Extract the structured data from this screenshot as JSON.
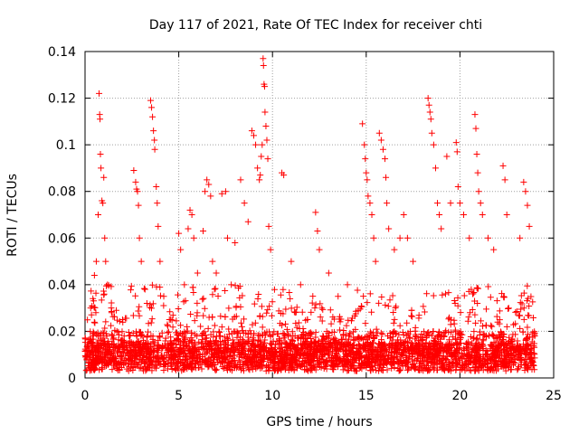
{
  "chart_data": {
    "type": "scatter",
    "title": "Day 117 of 2021, Rate Of TEC Index for receiver chti",
    "xlabel": "GPS time / hours",
    "ylabel": "ROTI / TECUs",
    "xlim": [
      0,
      25
    ],
    "ylim": [
      0,
      0.14
    ],
    "xticks": [
      0,
      5,
      10,
      15,
      20,
      25
    ],
    "yticks": [
      0,
      0.02,
      0.04,
      0.06,
      0.08,
      0.1,
      0.12,
      0.14
    ],
    "xtick_labels": [
      "0",
      "5",
      "10",
      "15",
      "20",
      "25"
    ],
    "ytick_labels": [
      "0",
      "0.02",
      "0.04",
      "0.06",
      "0.08",
      "0.1",
      "0.12",
      "0.14"
    ],
    "grid": true,
    "marker": "+",
    "marker_color": "#ff0000",
    "series": [
      {
        "name": "ROTI",
        "points": [
          [
            0.3,
            0.03
          ],
          [
            0.5,
            0.044
          ],
          [
            0.6,
            0.05
          ],
          [
            0.7,
            0.07
          ],
          [
            0.75,
            0.122
          ],
          [
            0.78,
            0.113
          ],
          [
            0.8,
            0.111
          ],
          [
            0.82,
            0.096
          ],
          [
            0.85,
            0.09
          ],
          [
            0.9,
            0.076
          ],
          [
            0.95,
            0.075
          ],
          [
            1.0,
            0.086
          ],
          [
            1.05,
            0.06
          ],
          [
            1.1,
            0.05
          ],
          [
            1.2,
            0.04
          ],
          [
            1.4,
            0.03
          ],
          [
            1.7,
            0.02
          ],
          [
            2.0,
            0.025
          ],
          [
            2.6,
            0.089
          ],
          [
            2.7,
            0.084
          ],
          [
            2.75,
            0.081
          ],
          [
            2.8,
            0.08
          ],
          [
            2.85,
            0.074
          ],
          [
            2.9,
            0.06
          ],
          [
            3.0,
            0.05
          ],
          [
            3.2,
            0.038
          ],
          [
            3.3,
            0.032
          ],
          [
            3.5,
            0.119
          ],
          [
            3.55,
            0.116
          ],
          [
            3.6,
            0.112
          ],
          [
            3.65,
            0.106
          ],
          [
            3.7,
            0.102
          ],
          [
            3.72,
            0.098
          ],
          [
            3.8,
            0.082
          ],
          [
            3.85,
            0.075
          ],
          [
            3.9,
            0.065
          ],
          [
            4.0,
            0.05
          ],
          [
            4.2,
            0.035
          ],
          [
            4.5,
            0.025
          ],
          [
            5.0,
            0.062
          ],
          [
            5.1,
            0.055
          ],
          [
            5.3,
            0.04
          ],
          [
            5.5,
            0.064
          ],
          [
            5.6,
            0.072
          ],
          [
            5.7,
            0.07
          ],
          [
            5.8,
            0.06
          ],
          [
            6.0,
            0.045
          ],
          [
            6.3,
            0.063
          ],
          [
            6.4,
            0.08
          ],
          [
            6.5,
            0.085
          ],
          [
            6.6,
            0.083
          ],
          [
            6.7,
            0.078
          ],
          [
            6.8,
            0.05
          ],
          [
            7.0,
            0.045
          ],
          [
            7.3,
            0.079
          ],
          [
            7.5,
            0.08
          ],
          [
            7.6,
            0.06
          ],
          [
            7.8,
            0.04
          ],
          [
            8.0,
            0.058
          ],
          [
            8.3,
            0.085
          ],
          [
            8.5,
            0.075
          ],
          [
            8.7,
            0.067
          ],
          [
            8.9,
            0.106
          ],
          [
            9.0,
            0.104
          ],
          [
            9.1,
            0.1
          ],
          [
            9.2,
            0.09
          ],
          [
            9.3,
            0.085
          ],
          [
            9.35,
            0.087
          ],
          [
            9.4,
            0.095
          ],
          [
            9.45,
            0.1
          ],
          [
            9.5,
            0.137
          ],
          [
            9.52,
            0.134
          ],
          [
            9.55,
            0.126
          ],
          [
            9.58,
            0.125
          ],
          [
            9.6,
            0.114
          ],
          [
            9.65,
            0.108
          ],
          [
            9.7,
            0.102
          ],
          [
            9.75,
            0.094
          ],
          [
            9.8,
            0.065
          ],
          [
            9.9,
            0.055
          ],
          [
            10.5,
            0.088
          ],
          [
            10.6,
            0.087
          ],
          [
            11.0,
            0.05
          ],
          [
            11.5,
            0.04
          ],
          [
            12.3,
            0.071
          ],
          [
            12.4,
            0.063
          ],
          [
            12.5,
            0.055
          ],
          [
            13.0,
            0.045
          ],
          [
            13.5,
            0.035
          ],
          [
            14.0,
            0.04
          ],
          [
            14.8,
            0.109
          ],
          [
            14.9,
            0.1
          ],
          [
            14.95,
            0.094
          ],
          [
            15.0,
            0.088
          ],
          [
            15.05,
            0.085
          ],
          [
            15.1,
            0.078
          ],
          [
            15.2,
            0.075
          ],
          [
            15.3,
            0.07
          ],
          [
            15.4,
            0.06
          ],
          [
            15.5,
            0.05
          ],
          [
            15.7,
            0.105
          ],
          [
            15.8,
            0.102
          ],
          [
            15.9,
            0.098
          ],
          [
            16.0,
            0.094
          ],
          [
            16.05,
            0.086
          ],
          [
            16.1,
            0.075
          ],
          [
            16.2,
            0.064
          ],
          [
            16.5,
            0.055
          ],
          [
            16.8,
            0.06
          ],
          [
            17.0,
            0.07
          ],
          [
            17.2,
            0.06
          ],
          [
            17.5,
            0.05
          ],
          [
            18.3,
            0.12
          ],
          [
            18.35,
            0.117
          ],
          [
            18.4,
            0.114
          ],
          [
            18.45,
            0.111
          ],
          [
            18.5,
            0.105
          ],
          [
            18.6,
            0.1
          ],
          [
            18.7,
            0.09
          ],
          [
            18.8,
            0.075
          ],
          [
            18.9,
            0.07
          ],
          [
            19.0,
            0.064
          ],
          [
            19.3,
            0.095
          ],
          [
            19.5,
            0.075
          ],
          [
            19.8,
            0.101
          ],
          [
            19.85,
            0.097
          ],
          [
            19.9,
            0.082
          ],
          [
            20.0,
            0.075
          ],
          [
            20.2,
            0.07
          ],
          [
            20.5,
            0.06
          ],
          [
            20.8,
            0.113
          ],
          [
            20.85,
            0.107
          ],
          [
            20.9,
            0.096
          ],
          [
            20.95,
            0.088
          ],
          [
            21.0,
            0.08
          ],
          [
            21.1,
            0.075
          ],
          [
            21.2,
            0.07
          ],
          [
            21.5,
            0.06
          ],
          [
            21.8,
            0.055
          ],
          [
            22.3,
            0.091
          ],
          [
            22.4,
            0.085
          ],
          [
            22.5,
            0.07
          ],
          [
            23.2,
            0.06
          ],
          [
            23.4,
            0.084
          ],
          [
            23.5,
            0.08
          ],
          [
            23.6,
            0.074
          ],
          [
            23.7,
            0.065
          ]
        ]
      }
    ],
    "dense_band": {
      "x": [
        0,
        24
      ],
      "y_min": 0.003,
      "y_typical": [
        0.006,
        0.02
      ],
      "y_upper_noise": 0.04
    }
  }
}
